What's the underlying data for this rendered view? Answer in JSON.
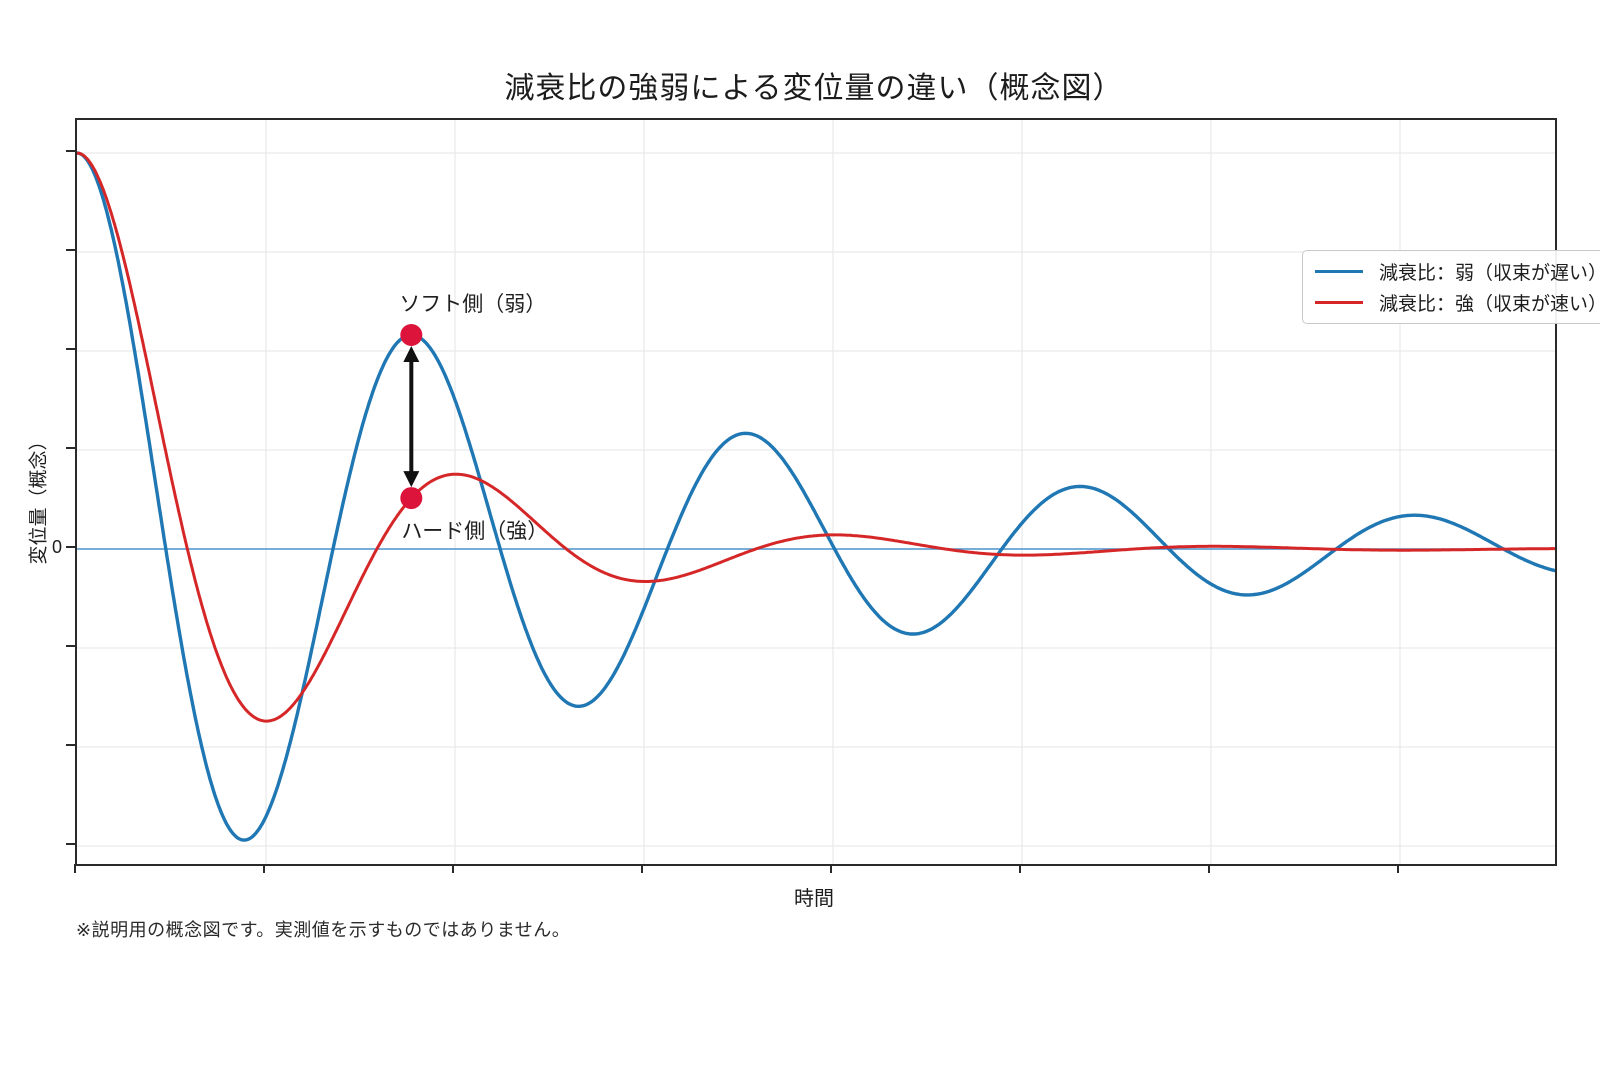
{
  "figure": {
    "title": "減衰比の強弱による変位量の違い（概念図）",
    "xlabel": "時間",
    "ylabel": "変位量（概念）",
    "zero_tick_label": "0",
    "footnote": "※説明用の概念図です。実測値を示すものではありません。"
  },
  "legend": {
    "position": "upper right",
    "items": [
      {
        "label": "減衰比：弱（収束が遅い）",
        "color": "#1f77b4"
      },
      {
        "label": "減衰比：強（収束が速い）",
        "color": "#d62728"
      }
    ]
  },
  "annotations": {
    "soft_label": "ソフト側（弱）",
    "hard_label": "ハード側（強）",
    "marker_color": "#dc143c",
    "arrow_color": "#111111",
    "comparison_t": 0.2262
  },
  "chart_data": {
    "type": "line",
    "title": "減衰比の強弱による変位量の違い（概念図）",
    "xlabel": "時間",
    "ylabel": "変位量（概念）",
    "x_normalized_range": [
      0,
      1
    ],
    "ylim": [
      -0.795,
      1.085
    ],
    "y_ticks": [
      1.0,
      0.75,
      0.5,
      0.25,
      0,
      -0.25,
      -0.5,
      -0.75
    ],
    "y_tick_labels_shown": [
      "0"
    ],
    "x_tick_count": 8,
    "x_tick_step_frac": 0.1279,
    "grid": true,
    "zero_line": {
      "y": 0,
      "color": "#4a92c9",
      "width": 1.6
    },
    "model": "y(t) = exp(-a*t) * ( cos(2*pi*n*t) + (a/(2*pi*n))*sin(2*pi*n*t) ),  t in [0,1]",
    "series": [
      {
        "name": "減衰比：弱（収束が遅い）",
        "color": "#1f77b4",
        "line_width": 3.4,
        "a": 2.72,
        "n": 4.42,
        "extrema_t": [
          0,
          0.113,
          0.226,
          0.339,
          0.452,
          0.566,
          0.679,
          0.792,
          0.905
        ],
        "extrema_y": [
          1.0,
          -0.735,
          0.54,
          -0.397,
          0.292,
          -0.215,
          0.158,
          -0.116,
          0.085
        ]
      },
      {
        "name": "減衰比：強（収束が速い）",
        "color": "#d62728",
        "line_width": 3.0,
        "a": 6.5,
        "n": 3.9,
        "extrema_t": [
          0,
          0.128,
          0.256,
          0.385,
          0.513,
          0.641,
          0.769,
          0.897
        ],
        "extrema_y": [
          1.0,
          -0.435,
          0.189,
          -0.082,
          0.036,
          -0.016,
          0.007,
          -0.003
        ]
      }
    ],
    "markers": [
      {
        "series": "減衰比：弱（収束が遅い）",
        "t": 0.2262,
        "y": 0.54,
        "label": "ソフト側（弱）"
      },
      {
        "series": "減衰比：強（収束が速い）",
        "t": 0.2262,
        "y": 0.129,
        "label": "ハード側（強）"
      }
    ],
    "legend_position": "upper right"
  }
}
